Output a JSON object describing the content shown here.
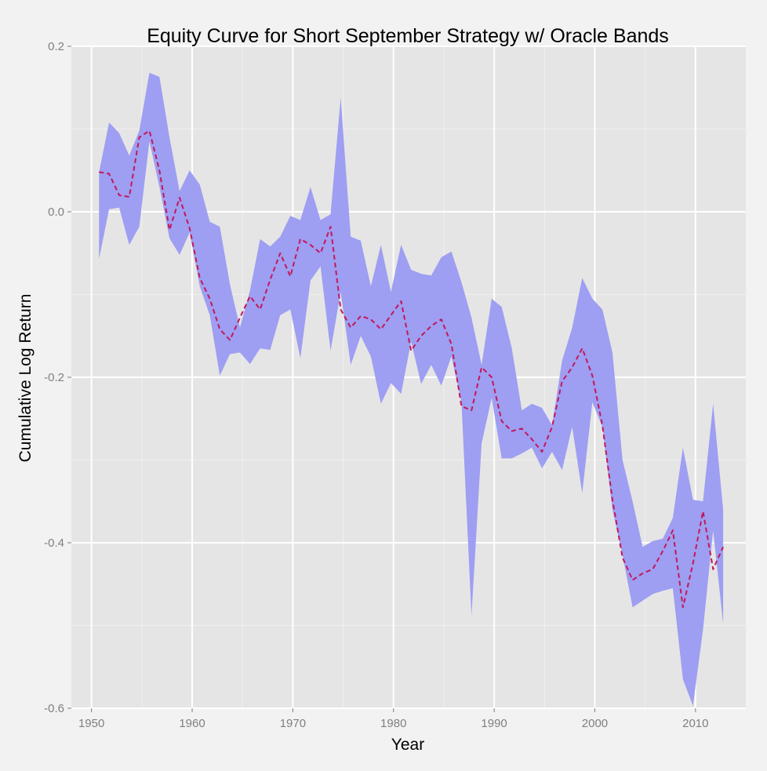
{
  "chart_data": {
    "type": "area",
    "title": "Equity Curve for Short September Strategy w/ Oracle Bands",
    "xlabel": "Year",
    "ylabel": "Cumulative Log Return",
    "xlim": [
      1948,
      2015
    ],
    "ylim": [
      -0.6,
      0.2
    ],
    "x_ticks": [
      1950,
      1960,
      1970,
      1980,
      1990,
      2000,
      2010
    ],
    "y_ticks": [
      -0.6,
      -0.4,
      -0.2,
      0.0,
      0.2
    ],
    "x_tick_labels": [
      "1950",
      "1960",
      "1970",
      "1980",
      "1990",
      "2000",
      "2010"
    ],
    "y_tick_labels": [
      "-0.6",
      "-0.4",
      "-0.2",
      "0.0",
      "0.2"
    ],
    "grid": true,
    "legend": "none",
    "colors": {
      "panel_background": "#e5e5e5",
      "grid_major": "#ffffff",
      "grid_minor": "#f0f0f0",
      "band_fill": "#9e9ef2",
      "line": "#c2185b"
    },
    "x": [
      1950.75,
      1951.75,
      1952.75,
      1953.75,
      1954.75,
      1955.75,
      1956.75,
      1957.75,
      1958.75,
      1959.75,
      1960.75,
      1961.75,
      1962.75,
      1963.75,
      1964.75,
      1965.75,
      1966.75,
      1967.75,
      1968.75,
      1969.75,
      1970.75,
      1971.75,
      1972.75,
      1973.75,
      1974.75,
      1975.75,
      1976.75,
      1977.75,
      1978.75,
      1979.75,
      1980.75,
      1981.75,
      1982.75,
      1983.75,
      1984.75,
      1985.75,
      1986.75,
      1987.75,
      1988.75,
      1989.75,
      1990.75,
      1991.75,
      1992.75,
      1993.75,
      1994.75,
      1995.75,
      1996.75,
      1997.75,
      1998.75,
      1999.75,
      2000.75,
      2001.75,
      2002.75,
      2003.75,
      2004.75,
      2005.75,
      2006.75,
      2007.75,
      2008.75,
      2009.75,
      2010.75,
      2011.75,
      2012.75
    ],
    "series": [
      {
        "type": "band",
        "upper": [
          0.048,
          0.108,
          0.095,
          0.068,
          0.098,
          0.168,
          0.163,
          0.09,
          0.025,
          0.05,
          0.033,
          -0.012,
          -0.018,
          -0.088,
          -0.14,
          -0.095,
          -0.033,
          -0.042,
          -0.03,
          -0.005,
          -0.01,
          0.03,
          -0.01,
          -0.003,
          0.138,
          -0.03,
          -0.035,
          -0.09,
          -0.04,
          -0.097,
          -0.04,
          -0.07,
          -0.075,
          -0.077,
          -0.055,
          -0.048,
          -0.085,
          -0.128,
          -0.185,
          -0.105,
          -0.115,
          -0.165,
          -0.24,
          -0.232,
          -0.237,
          -0.258,
          -0.18,
          -0.14,
          -0.08,
          -0.105,
          -0.118,
          -0.17,
          -0.3,
          -0.35,
          -0.405,
          -0.398,
          -0.395,
          -0.37,
          -0.285,
          -0.348,
          -0.35,
          -0.232,
          -0.36
        ],
        "lower": [
          -0.057,
          0.003,
          0.005,
          -0.04,
          -0.018,
          0.085,
          0.03,
          -0.032,
          -0.052,
          -0.025,
          -0.09,
          -0.125,
          -0.198,
          -0.172,
          -0.17,
          -0.184,
          -0.165,
          -0.167,
          -0.125,
          -0.118,
          -0.177,
          -0.083,
          -0.066,
          -0.168,
          -0.097,
          -0.185,
          -0.15,
          -0.175,
          -0.232,
          -0.207,
          -0.22,
          -0.157,
          -0.208,
          -0.185,
          -0.21,
          -0.175,
          -0.23,
          -0.488,
          -0.28,
          -0.225,
          -0.298,
          -0.298,
          -0.292,
          -0.285,
          -0.31,
          -0.29,
          -0.312,
          -0.26,
          -0.34,
          -0.23,
          -0.26,
          -0.36,
          -0.415,
          -0.478,
          -0.47,
          -0.462,
          -0.458,
          -0.455,
          -0.565,
          -0.597,
          -0.505,
          -0.385,
          -0.498
        ]
      },
      {
        "type": "line",
        "style": "dashed",
        "values": [
          0.048,
          0.046,
          0.02,
          0.018,
          0.09,
          0.098,
          0.05,
          -0.022,
          0.017,
          -0.02,
          -0.08,
          -0.105,
          -0.142,
          -0.155,
          -0.128,
          -0.102,
          -0.118,
          -0.082,
          -0.05,
          -0.078,
          -0.033,
          -0.04,
          -0.05,
          -0.018,
          -0.118,
          -0.14,
          -0.126,
          -0.13,
          -0.142,
          -0.125,
          -0.108,
          -0.168,
          -0.15,
          -0.138,
          -0.13,
          -0.16,
          -0.235,
          -0.24,
          -0.188,
          -0.2,
          -0.253,
          -0.265,
          -0.262,
          -0.275,
          -0.29,
          -0.26,
          -0.205,
          -0.188,
          -0.165,
          -0.198,
          -0.258,
          -0.348,
          -0.418,
          -0.445,
          -0.437,
          -0.432,
          -0.41,
          -0.385,
          -0.478,
          -0.425,
          -0.362,
          -0.432,
          -0.405
        ]
      }
    ]
  }
}
